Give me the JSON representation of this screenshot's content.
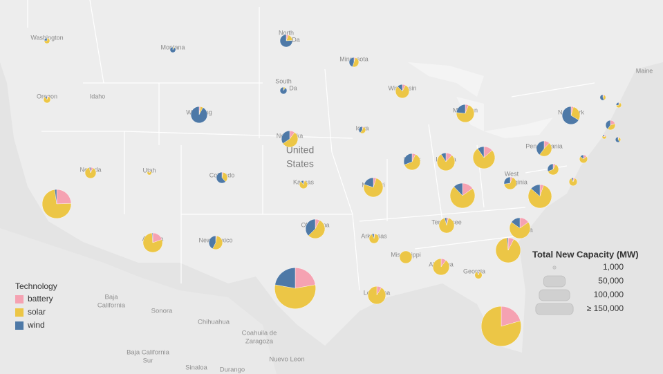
{
  "chart_data": {
    "type": "pie-map",
    "series": [
      {
        "name": "battery",
        "color": "#f5a2b2",
        "values": [
          0,
          300,
          0,
          1000,
          0,
          800,
          500,
          1500,
          2000,
          1500,
          300,
          200,
          2000,
          300,
          200,
          3000,
          300,
          2000,
          4000,
          7000,
          3000,
          1000,
          1000,
          200,
          500,
          300,
          2000,
          1000,
          1000,
          500,
          10000,
          3000,
          22000,
          3000,
          8000,
          500,
          1000,
          7000,
          300,
          0,
          3000,
          5000,
          300,
          40000,
          3000,
          35000
        ]
      },
      {
        "name": "solar",
        "color": "#ecc646",
        "values": [
          2500,
          4200,
          300,
          3000,
          500,
          1500,
          5000,
          16000,
          24000,
          10000,
          1200,
          2000,
          4000,
          1200,
          1000,
          16000,
          2700,
          18000,
          27000,
          40000,
          12000,
          5000,
          11500,
          1600,
          4500,
          6000,
          30000,
          11000,
          8000,
          6000,
          48000,
          48000,
          66000,
          22000,
          32000,
          11000,
          23000,
          32000,
          9000,
          16500,
          26000,
          60000,
          5000,
          100000,
          31000,
          135000
        ]
      },
      {
        "name": "wind",
        "color": "#4e79a7",
        "values": [
          800,
          500,
          3000,
          12500,
          4500,
          26700,
          4500,
          2500,
          8000,
          22500,
          2000,
          800,
          4000,
          300,
          1800,
          10000,
          2000,
          9000,
          3000,
          5000,
          10000,
          1000,
          500,
          200,
          8000,
          700,
          8000,
          4500,
          4000,
          500,
          8000,
          8000,
          2000,
          15000,
          500,
          8500,
          1000,
          7000,
          700,
          0,
          0,
          1000,
          300,
          40000,
          0,
          0
        ]
      }
    ],
    "legend_title": "Technology",
    "size_legend": {
      "title": "Total New Capacity (MW)",
      "ticks": [
        {
          "value": 1000,
          "label": "1,000"
        },
        {
          "value": 50000,
          "label": "50,000"
        },
        {
          "value": 100000,
          "label": "100,000"
        },
        {
          "value": 150000,
          "label": "≥ 150,000"
        }
      ]
    },
    "country_labels": [
      "United",
      "States"
    ],
    "state_labels": [
      "Washington",
      "Oregon",
      "Idaho",
      "Montana",
      "North",
      "Da",
      "South",
      "Da",
      "Wyoming",
      "Minnesota",
      "Wisconsin",
      "Michigan",
      "New York",
      "Maine",
      "Nebraska",
      "Iowa",
      "Nevada",
      "Utah",
      "Colorado",
      "Kansas",
      "Illinois",
      "Indiana",
      "Pennsylvania",
      "West",
      "Virginia",
      "Missouri",
      "Oklahoma",
      "Arkansas",
      "Tennessee",
      "Carolina",
      "Mississippi",
      "Alabama",
      "Georgia",
      "Louisiana",
      "New Mexico",
      "Arizona"
    ],
    "mexico_labels": [
      "Baja",
      "California",
      "Sonora",
      "Chihuahua",
      "Coahuila de",
      "Zaragoza",
      "Baja California",
      "Sur",
      "Sinaloa",
      "Durango",
      "Nuevo Leon"
    ]
  }
}
